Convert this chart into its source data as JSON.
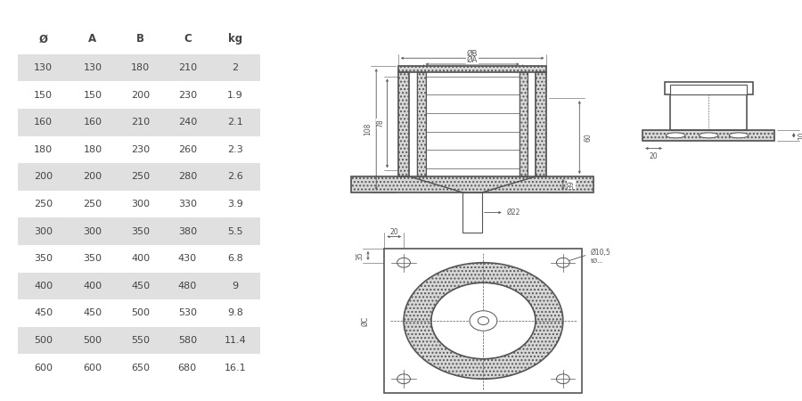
{
  "table_headers": [
    "Ø",
    "A",
    "B",
    "C",
    "kg"
  ],
  "table_data": [
    [
      130,
      130,
      180,
      210,
      2
    ],
    [
      150,
      150,
      200,
      230,
      1.9
    ],
    [
      160,
      160,
      210,
      240,
      2.1
    ],
    [
      180,
      180,
      230,
      260,
      2.3
    ],
    [
      200,
      200,
      250,
      280,
      2.6
    ],
    [
      250,
      250,
      300,
      330,
      3.9
    ],
    [
      300,
      300,
      350,
      380,
      5.5
    ],
    [
      350,
      350,
      400,
      430,
      6.8
    ],
    [
      400,
      400,
      450,
      480,
      9
    ],
    [
      450,
      450,
      500,
      530,
      9.8
    ],
    [
      500,
      500,
      550,
      580,
      11.4
    ],
    [
      600,
      600,
      650,
      680,
      16.1
    ]
  ],
  "shaded_rows": [
    0,
    2,
    4,
    6,
    8,
    10
  ],
  "row_bg_shaded": "#e0e0e0",
  "row_bg_plain": "#ffffff",
  "text_color": "#444444",
  "background": "#ffffff",
  "line_color": "#555555",
  "dim_color": "#555555"
}
